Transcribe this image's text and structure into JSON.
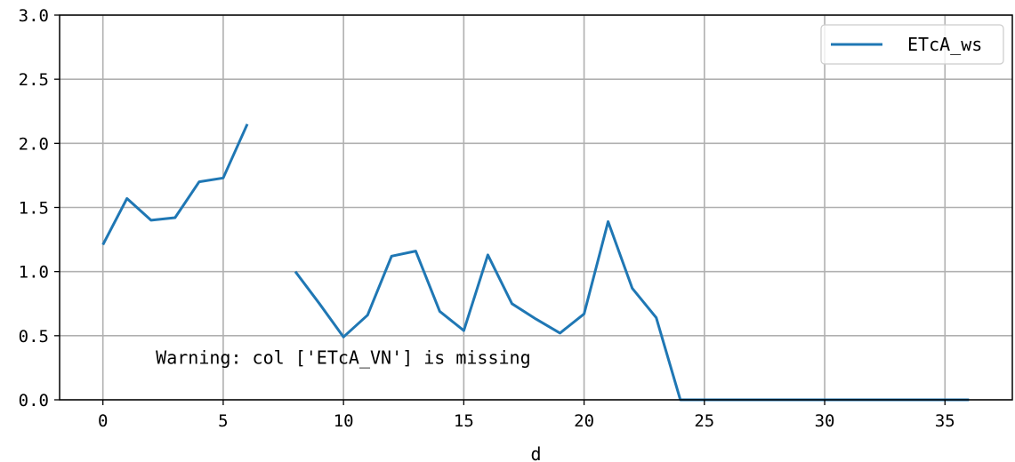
{
  "chart_data": {
    "type": "line",
    "title": "",
    "xlabel": "d",
    "ylabel": "",
    "xlim": [
      -1.8,
      37.8
    ],
    "ylim": [
      0,
      3.0
    ],
    "xticks": [
      0,
      5,
      10,
      15,
      20,
      25,
      30,
      35
    ],
    "yticks": [
      0.0,
      0.5,
      1.0,
      1.5,
      2.0,
      2.5,
      3.0
    ],
    "ytick_labels": [
      "0.0",
      "0.5",
      "1.0",
      "1.5",
      "2.0",
      "2.5",
      "3.0"
    ],
    "grid": true,
    "legend_position": "top-right",
    "series": [
      {
        "name": "ETcA_ws",
        "color": "#1f77b4",
        "x": [
          0,
          1,
          2,
          3,
          4,
          5,
          6,
          7,
          8,
          9,
          10,
          11,
          12,
          13,
          14,
          15,
          16,
          17,
          18,
          19,
          20,
          21,
          22,
          23,
          24,
          25,
          26,
          27,
          28,
          29,
          30,
          31,
          32,
          33,
          34,
          35,
          36
        ],
        "y": [
          1.21,
          1.57,
          1.4,
          1.42,
          1.7,
          1.73,
          2.15,
          null,
          1.0,
          0.75,
          0.49,
          0.66,
          1.12,
          1.16,
          0.69,
          0.54,
          1.13,
          0.75,
          0.63,
          0.52,
          0.67,
          1.39,
          0.87,
          0.64,
          0,
          0,
          0,
          0,
          0,
          0,
          0,
          0,
          0,
          0,
          0,
          0,
          0
        ]
      }
    ],
    "annotations": [
      {
        "text": "Warning: col ['ETcA_VN'] is missing",
        "x": 2.2,
        "y": 0.33
      }
    ]
  }
}
